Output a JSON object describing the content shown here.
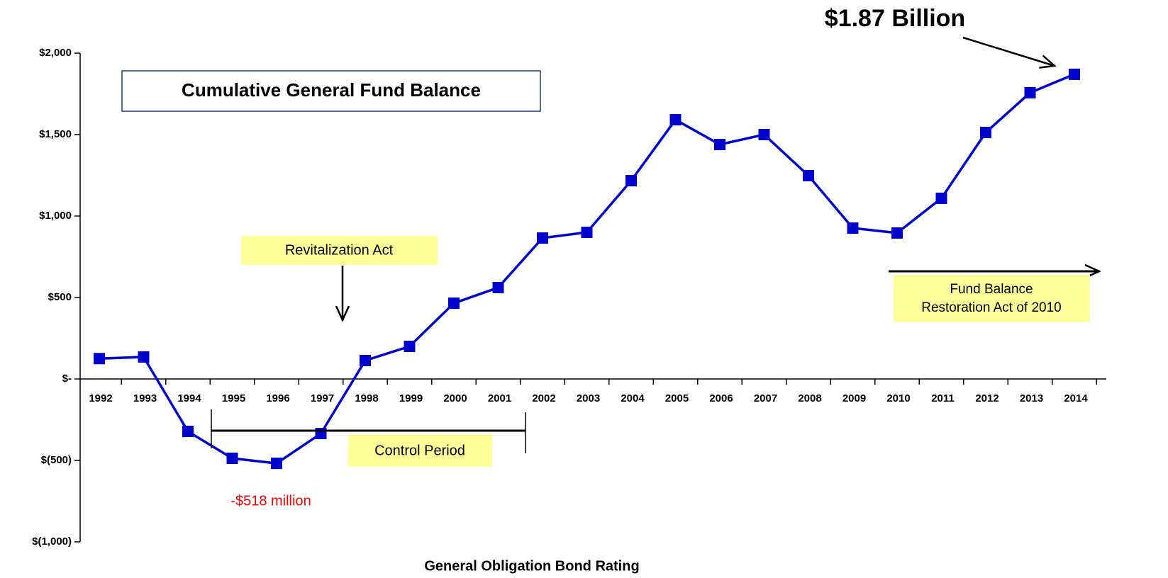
{
  "chart_data": {
    "type": "line",
    "title": "Cumulative General Fund Balance",
    "x_label": "General Obligation Bond Rating",
    "categories": [
      "1992",
      "1993",
      "1994",
      "1995",
      "1996",
      "1997",
      "1998",
      "1999",
      "2000",
      "2001",
      "2002",
      "2003",
      "2004",
      "2005",
      "2006",
      "2007",
      "2008",
      "2009",
      "2010",
      "2011",
      "2012",
      "2013",
      "2014"
    ],
    "series": [
      {
        "name": "Cumulative General Fund Balance",
        "color": "#0000cc",
        "values": [
          125,
          135,
          -322,
          -487,
          -518,
          -335,
          113,
          200,
          465,
          561,
          865,
          900,
          1217,
          1591,
          1439,
          1500,
          1248,
          926,
          896,
          1109,
          1513,
          1757,
          1870
        ]
      }
    ],
    "ylim": [
      -1000,
      2000
    ],
    "yticks": [
      {
        "value": 2000,
        "label": "$2,000"
      },
      {
        "value": 1500,
        "label": "$1,500"
      },
      {
        "value": 1000,
        "label": "$1,000"
      },
      {
        "value": 500,
        "label": "$500"
      },
      {
        "value": 0,
        "label": "$-"
      },
      {
        "value": -500,
        "label": "$(500)"
      },
      {
        "value": -1000,
        "label": "$(1,000)"
      }
    ],
    "annotations": {
      "peak": "$1.87 Billion",
      "low": "-$518 million",
      "revitalization": "Revitalization Act",
      "control": "Control Period",
      "restoration": [
        "Fund Balance",
        "Restoration Act of 2010"
      ]
    }
  }
}
